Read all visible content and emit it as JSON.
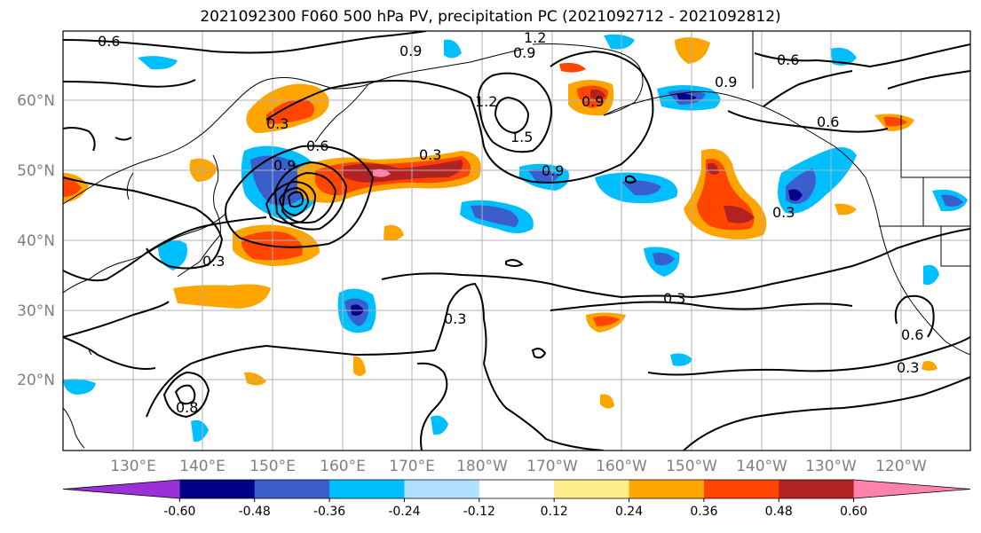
{
  "title": "2021092300 F060 500 hPa PV, precipitation PC (2021092712 - 2021092812)",
  "map": {
    "lat_labels": [
      "60°N",
      "50°N",
      "40°N",
      "30°N",
      "20°N"
    ],
    "lon_labels": [
      "130°E",
      "140°E",
      "150°E",
      "160°E",
      "170°E",
      "180°W",
      "170°W",
      "160°W",
      "150°W",
      "140°W",
      "130°W",
      "120°W"
    ],
    "lat_range": [
      10,
      70
    ],
    "lon_range": [
      120,
      250
    ],
    "gridlines": true
  },
  "colorbar": {
    "levels": [
      "-0.60",
      "-0.48",
      "-0.36",
      "-0.24",
      "-0.12",
      "0.12",
      "0.24",
      "0.36",
      "0.48",
      "0.60"
    ],
    "colors": [
      "#9b30d9",
      "#00008b",
      "#3a5fcd",
      "#00bfff",
      "#b0e2ff",
      "#ffffff",
      "#ffec8b",
      "#ffa500",
      "#ff4500",
      "#b22222",
      "#ff82ab"
    ],
    "extend": "both"
  },
  "contour_labels": [
    "0.6",
    "0.9",
    "1.2",
    "0.9",
    "0.9",
    "0.6",
    "0.9",
    "0.6",
    "0.3",
    "1.2",
    "1.5",
    "0.9",
    "0.3",
    "0.3",
    "0.6",
    "0.9",
    "0.3",
    "0.3",
    "0.3",
    "0.6",
    "0.3",
    "0.8"
  ]
}
